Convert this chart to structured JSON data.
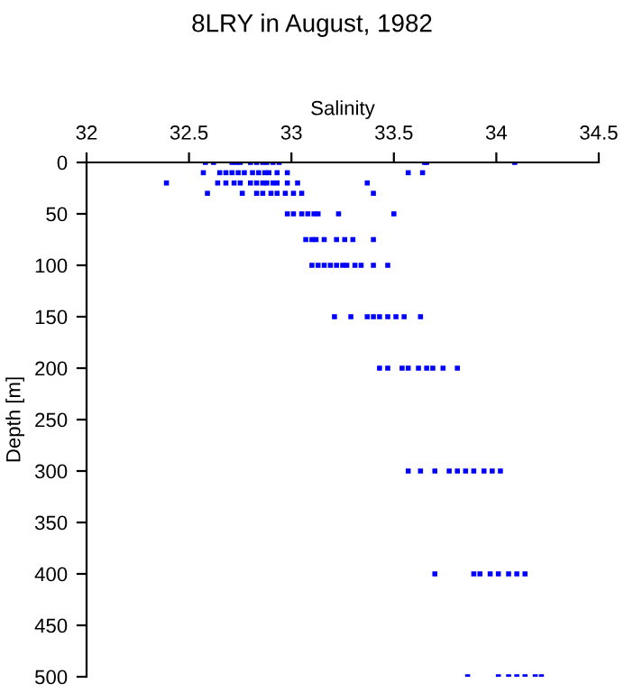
{
  "chart_data": {
    "type": "scatter",
    "title": "8LRY in August, 1982",
    "xlabel": "Salinity",
    "ylabel": "Depth [m]",
    "xlim": [
      32,
      34.5
    ],
    "xticks": [
      32,
      32.5,
      33,
      33.5,
      34,
      34.5
    ],
    "ylim": [
      500,
      0
    ],
    "yticks": [
      0,
      50,
      100,
      150,
      200,
      250,
      300,
      350,
      400,
      450,
      500
    ],
    "grid": false,
    "marker": "square",
    "series": [
      {
        "color": "#0000ff",
        "x": [
          32.58,
          32.62,
          32.71,
          32.73,
          32.75,
          32.8,
          32.83,
          32.86,
          32.88,
          32.91,
          32.94,
          33.65,
          33.66,
          34.09,
          32.57,
          32.65,
          32.68,
          32.71,
          32.74,
          32.77,
          32.81,
          32.84,
          32.87,
          32.89,
          32.93,
          32.98,
          33.57,
          33.64,
          32.39,
          32.64,
          32.68,
          32.72,
          32.75,
          32.8,
          32.83,
          32.86,
          32.88,
          32.91,
          32.93,
          32.98,
          33.03,
          33.37,
          32.59,
          32.76,
          32.83,
          32.86,
          32.9,
          32.93,
          32.97,
          33.01,
          33.05,
          33.4,
          32.98,
          33.01,
          33.05,
          33.08,
          33.11,
          33.13,
          33.23,
          33.5,
          33.07,
          33.1,
          33.12,
          33.16,
          33.22,
          33.26,
          33.3,
          33.4,
          33.1,
          33.13,
          33.16,
          33.19,
          33.22,
          33.25,
          33.27,
          33.31,
          33.34,
          33.4,
          33.47,
          33.21,
          33.29,
          33.37,
          33.4,
          33.43,
          33.47,
          33.51,
          33.55,
          33.63,
          33.43,
          33.47,
          33.54,
          33.57,
          33.62,
          33.66,
          33.69,
          33.74,
          33.81,
          33.57,
          33.63,
          33.7,
          33.77,
          33.81,
          33.85,
          33.89,
          33.94,
          33.98,
          34.02,
          33.7,
          33.89,
          33.92,
          33.97,
          34.01,
          34.06,
          34.1,
          34.14,
          33.86,
          34.01,
          34.06,
          34.1,
          34.14,
          34.19,
          34.22
        ],
        "values": [
          0,
          0,
          0,
          0,
          0,
          0,
          0,
          0,
          0,
          0,
          0,
          0,
          0,
          0,
          10,
          10,
          10,
          10,
          10,
          10,
          10,
          10,
          10,
          10,
          10,
          10,
          10,
          10,
          20,
          20,
          20,
          20,
          20,
          20,
          20,
          20,
          20,
          20,
          20,
          20,
          20,
          20,
          30,
          30,
          30,
          30,
          30,
          30,
          30,
          30,
          30,
          30,
          50,
          50,
          50,
          50,
          50,
          50,
          50,
          50,
          75,
          75,
          75,
          75,
          75,
          75,
          75,
          75,
          100,
          100,
          100,
          100,
          100,
          100,
          100,
          100,
          100,
          100,
          100,
          150,
          150,
          150,
          150,
          150,
          150,
          150,
          150,
          150,
          200,
          200,
          200,
          200,
          200,
          200,
          200,
          200,
          200,
          300,
          300,
          300,
          300,
          300,
          300,
          300,
          300,
          300,
          300,
          400,
          400,
          400,
          400,
          400,
          400,
          400,
          400,
          500,
          500,
          500,
          500,
          500,
          500,
          500
        ]
      }
    ]
  }
}
